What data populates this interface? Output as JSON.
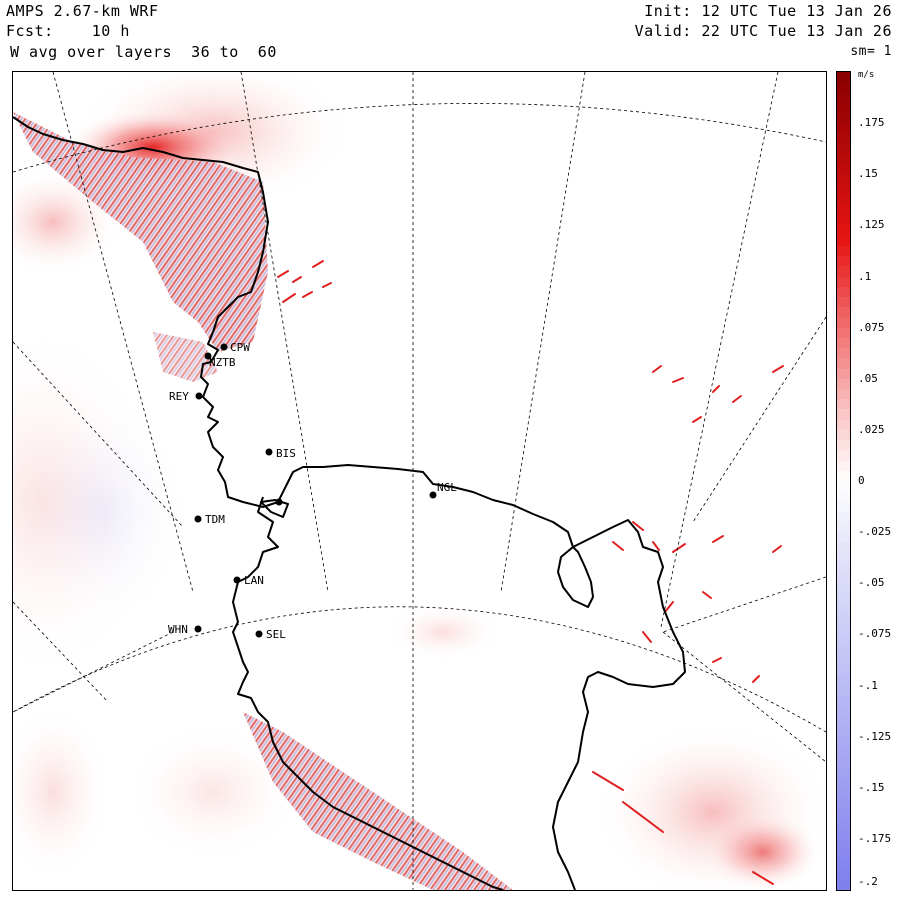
{
  "header": {
    "model": "AMPS 2.67-km WRF",
    "forecast": "Fcst:    10 h",
    "field": "W avg over layers  36 to  60",
    "init": "Init: 12 UTC Tue 13 Jan 26",
    "valid": "Valid: 22 UTC Tue 13 Jan 26",
    "smoothing": "sm= 1"
  },
  "colorbar": {
    "unit": "m/s",
    "ticks": [
      ".175",
      ".15",
      ".125",
      ".1",
      ".075",
      ".05",
      ".025",
      "0",
      "-.025",
      "-.05",
      "-.075",
      "-.1",
      "-.125",
      "-.15",
      "-.175",
      "-.2"
    ],
    "range": [
      -0.2,
      0.2
    ],
    "positive_color": "#8b0000",
    "mid_color": "#ffffff",
    "negative_color": "#8080ee"
  },
  "stations": [
    {
      "code": "CPW"
    },
    {
      "code": "NZTB"
    },
    {
      "code": "REY"
    },
    {
      "code": "BIS"
    },
    {
      "code": "TDM"
    },
    {
      "code": "LAN"
    },
    {
      "code": "WHN"
    },
    {
      "code": "SEL"
    },
    {
      "code": "NGL"
    }
  ],
  "map": {
    "coastline_color": "#000000",
    "gridline_style": "dashed"
  }
}
